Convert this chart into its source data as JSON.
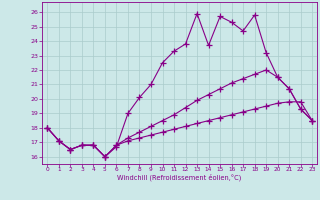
{
  "xlabel": "Windchill (Refroidissement éolien,°C)",
  "bg_color": "#cce8e8",
  "line_color": "#880088",
  "grid_color": "#aacccc",
  "xlim": [
    -0.5,
    23.4
  ],
  "ylim": [
    15.5,
    26.7
  ],
  "yticks": [
    16,
    17,
    18,
    19,
    20,
    21,
    22,
    23,
    24,
    25,
    26
  ],
  "xticks": [
    0,
    1,
    2,
    3,
    4,
    5,
    6,
    7,
    8,
    9,
    10,
    11,
    12,
    13,
    14,
    15,
    16,
    17,
    18,
    19,
    20,
    21,
    22,
    23
  ],
  "line1_x": [
    0,
    1,
    2,
    3,
    4,
    5,
    6,
    7,
    8,
    9,
    10,
    11,
    12,
    13,
    14,
    15,
    16,
    17,
    18,
    19,
    20,
    21,
    22,
    23
  ],
  "line1_y": [
    18.0,
    17.1,
    16.5,
    16.8,
    16.8,
    16.0,
    16.7,
    19.0,
    20.1,
    21.0,
    22.5,
    23.3,
    23.8,
    25.9,
    23.7,
    25.7,
    25.3,
    24.7,
    25.8,
    23.2,
    21.5,
    20.7,
    19.3,
    18.5
  ],
  "line2_x": [
    0,
    1,
    2,
    3,
    4,
    5,
    6,
    7,
    8,
    9,
    10,
    11,
    12,
    13,
    14,
    15,
    16,
    17,
    18,
    19,
    20,
    21,
    22,
    23
  ],
  "line2_y": [
    18.0,
    17.1,
    16.5,
    16.8,
    16.8,
    16.0,
    16.8,
    17.3,
    17.7,
    18.1,
    18.5,
    18.9,
    19.4,
    19.9,
    20.3,
    20.7,
    21.1,
    21.4,
    21.7,
    22.0,
    21.5,
    20.7,
    19.3,
    18.5
  ],
  "line3_x": [
    0,
    1,
    2,
    3,
    4,
    5,
    6,
    7,
    8,
    9,
    10,
    11,
    12,
    13,
    14,
    15,
    16,
    17,
    18,
    19,
    20,
    21,
    22,
    23
  ],
  "line3_y": [
    18.0,
    17.1,
    16.5,
    16.8,
    16.8,
    16.0,
    16.8,
    17.1,
    17.3,
    17.5,
    17.7,
    17.9,
    18.1,
    18.3,
    18.5,
    18.7,
    18.9,
    19.1,
    19.3,
    19.5,
    19.7,
    19.8,
    19.8,
    18.5
  ]
}
